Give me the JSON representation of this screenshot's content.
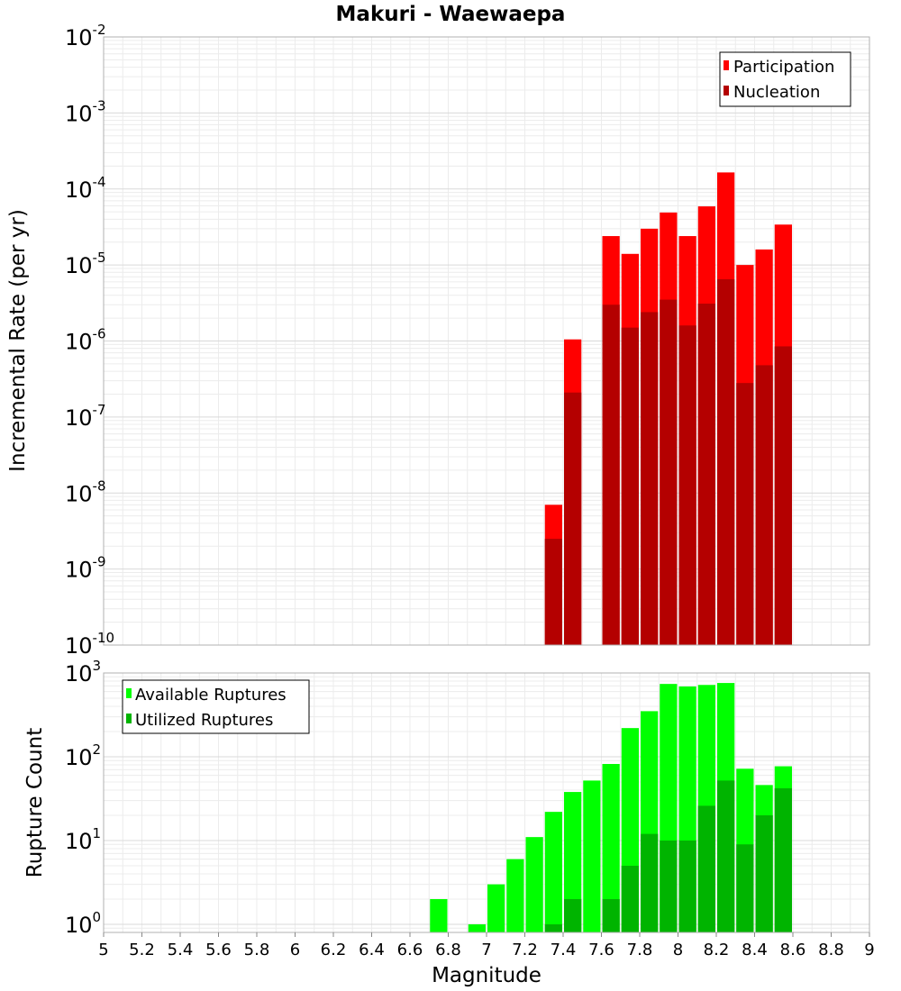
{
  "title": "Makuri - Waewaepa",
  "x_axis": {
    "label": "Magnitude",
    "range": [
      5,
      9
    ],
    "ticks": [
      "5",
      "5.2",
      "5.4",
      "5.6",
      "5.8",
      "6",
      "6.2",
      "6.4",
      "6.6",
      "6.8",
      "7",
      "7.2",
      "7.4",
      "7.6",
      "7.8",
      "8",
      "8.2",
      "8.4",
      "8.6",
      "8.8",
      "9"
    ]
  },
  "colors": {
    "participation": "#ff0000",
    "nucleation": "#b40000",
    "available": "#00ff00",
    "utilized": "#00b400"
  },
  "chart_data": [
    {
      "type": "bar",
      "title": "Makuri - Waewaepa",
      "xlabel": "Magnitude",
      "ylabel": "Incremental Rate (per yr)",
      "yscale": "log",
      "ylim": [
        1e-10,
        0.01
      ],
      "xlim": [
        5,
        9
      ],
      "y_ticks": [
        {
          "base": "10",
          "exp": "-2"
        },
        {
          "base": "10",
          "exp": "-3"
        },
        {
          "base": "10",
          "exp": "-4"
        },
        {
          "base": "10",
          "exp": "-5"
        },
        {
          "base": "10",
          "exp": "-6"
        },
        {
          "base": "10",
          "exp": "-7"
        },
        {
          "base": "10",
          "exp": "-8"
        },
        {
          "base": "10",
          "exp": "-9"
        },
        {
          "base": "10",
          "exp": "-10"
        }
      ],
      "legend": {
        "placement": "top-right",
        "entries": [
          "Participation",
          "Nucleation"
        ]
      },
      "grid": true,
      "x": [
        7.35,
        7.45,
        7.65,
        7.75,
        7.85,
        7.95,
        8.05,
        8.15,
        8.25,
        8.35,
        8.45,
        8.55
      ],
      "series": [
        {
          "name": "Participation",
          "values": [
            7e-09,
            1.05e-06,
            2.4e-05,
            1.4e-05,
            3e-05,
            4.9e-05,
            2.4e-05,
            5.9e-05,
            0.000165,
            1e-05,
            1.6e-05,
            3.4e-05
          ]
        },
        {
          "name": "Nucleation",
          "values": [
            2.5e-09,
            2.1e-07,
            3e-06,
            1.5e-06,
            2.4e-06,
            3.5e-06,
            1.6e-06,
            3.1e-06,
            6.5e-06,
            2.8e-07,
            4.8e-07,
            8.5e-07
          ]
        }
      ]
    },
    {
      "type": "bar",
      "xlabel": "Magnitude",
      "ylabel": "Rupture Count",
      "yscale": "log",
      "ylim": [
        0.8,
        1000
      ],
      "xlim": [
        5,
        9
      ],
      "y_ticks": [
        {
          "base": "10",
          "exp": "3"
        },
        {
          "base": "10",
          "exp": "2"
        },
        {
          "base": "10",
          "exp": "1"
        },
        {
          "base": "10",
          "exp": "0"
        }
      ],
      "legend": {
        "placement": "top-left",
        "entries": [
          "Available Ruptures",
          "Utilized Ruptures"
        ]
      },
      "grid": true,
      "x": [
        6.75,
        6.95,
        7.05,
        7.15,
        7.25,
        7.35,
        7.45,
        7.55,
        7.65,
        7.75,
        7.85,
        7.95,
        8.05,
        8.15,
        8.25,
        8.35,
        8.45,
        8.55
      ],
      "series": [
        {
          "name": "Available Ruptures",
          "values": [
            2,
            1,
            3,
            6,
            11,
            22,
            38,
            52,
            82,
            220,
            350,
            740,
            690,
            720,
            760,
            72,
            46,
            77
          ]
        },
        {
          "name": "Utilized Ruptures",
          "values": [
            0,
            0,
            0,
            0,
            0,
            1,
            2,
            0,
            2,
            5,
            12,
            10,
            10,
            26,
            52,
            9,
            20,
            42
          ]
        }
      ]
    }
  ]
}
